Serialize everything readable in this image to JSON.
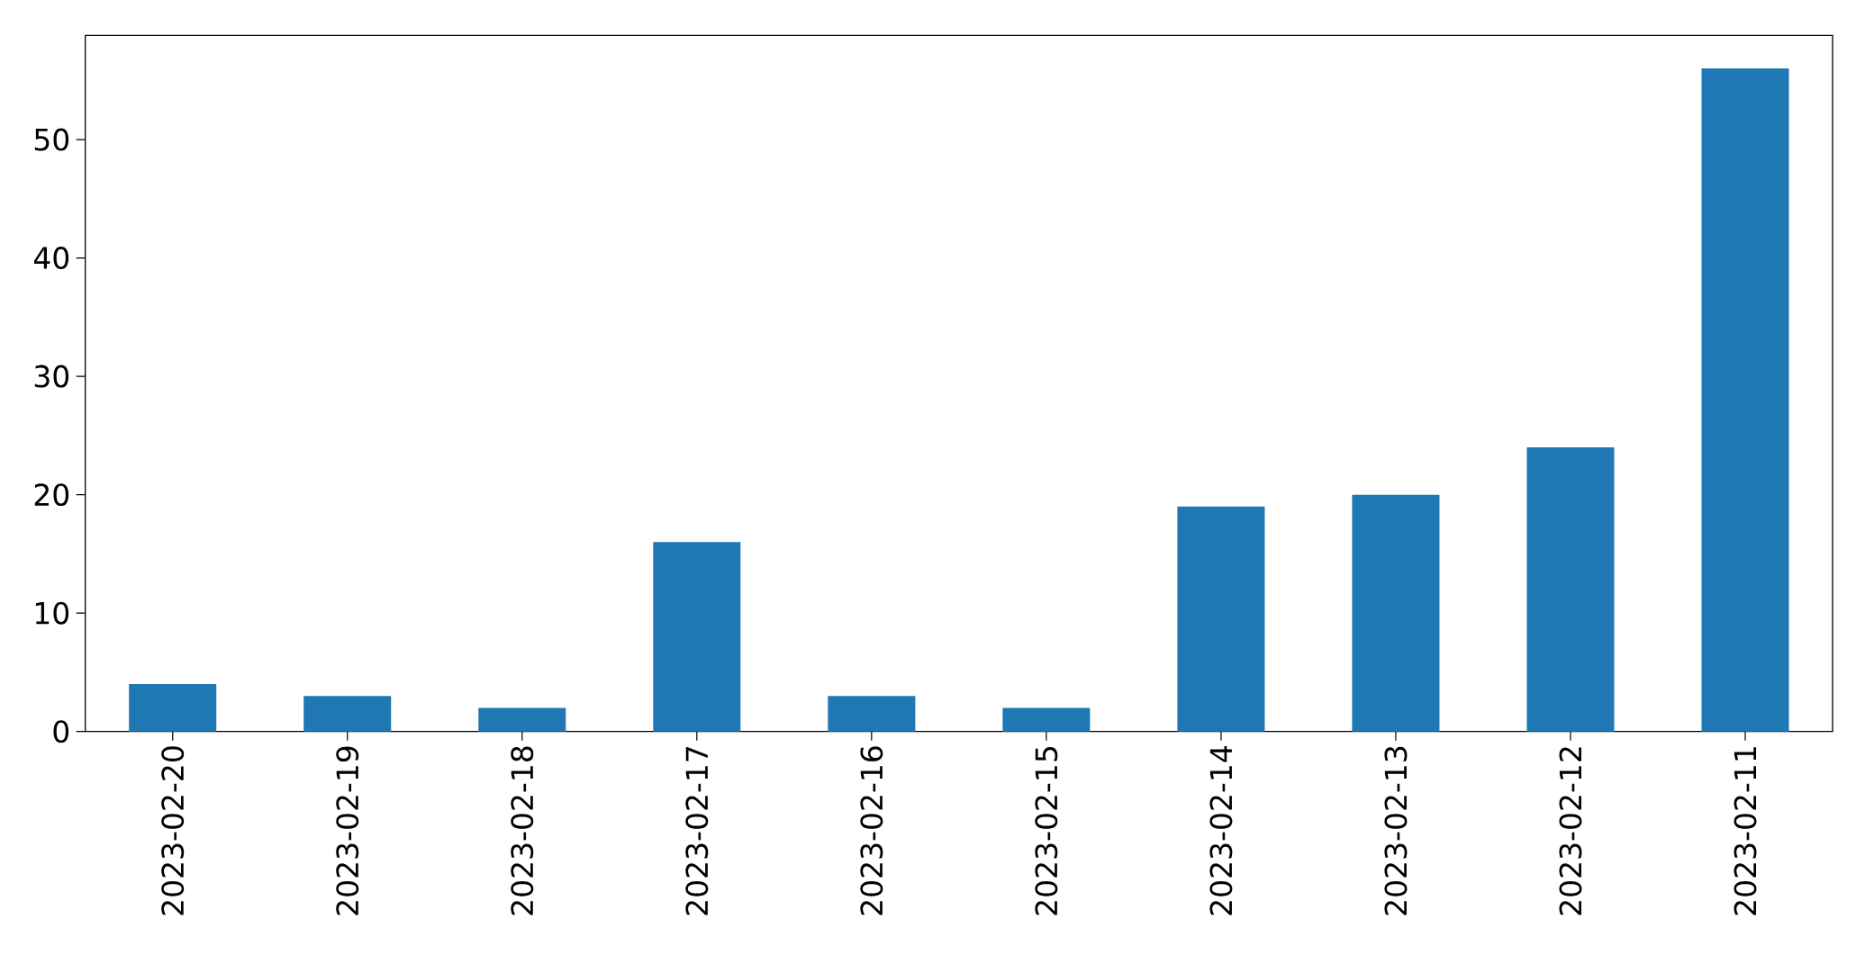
{
  "chart_data": {
    "type": "bar",
    "categories": [
      "2023-02-20",
      "2023-02-19",
      "2023-02-18",
      "2023-02-17",
      "2023-02-16",
      "2023-02-15",
      "2023-02-14",
      "2023-02-13",
      "2023-02-12",
      "2023-02-11"
    ],
    "values": [
      4,
      3,
      2,
      16,
      3,
      2,
      19,
      20,
      24,
      56
    ],
    "color": "#1f77b4",
    "ylim": [
      0,
      58.8
    ],
    "yticks": [
      0,
      10,
      20,
      30,
      40,
      50
    ]
  }
}
